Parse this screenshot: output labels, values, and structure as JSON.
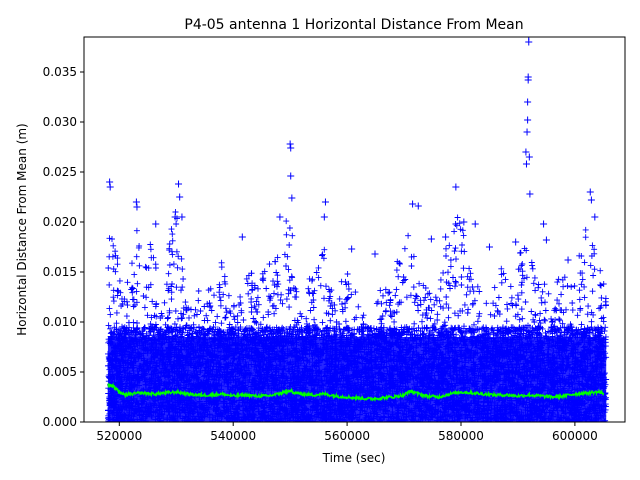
{
  "chart_data": {
    "type": "scatter",
    "title": "P4-05 antenna 1 Horizontal Distance From Mean",
    "xlabel": "Time (sec)",
    "ylabel": "Horizontal Distance From Mean (m)",
    "xlim": [
      513800,
      608800
    ],
    "ylim": [
      0,
      0.0385
    ],
    "x_ticks": [
      520000,
      540000,
      560000,
      580000,
      600000
    ],
    "x_tick_labels": [
      "520000",
      "540000",
      "560000",
      "580000",
      "600000"
    ],
    "y_ticks": [
      0.0,
      0.005,
      0.01,
      0.015,
      0.02,
      0.025,
      0.03,
      0.035
    ],
    "y_tick_labels": [
      "0.000",
      "0.005",
      "0.010",
      "0.015",
      "0.020",
      "0.025",
      "0.030",
      "0.035"
    ],
    "grid": false,
    "series": [
      {
        "marker": "+",
        "color": "#0000ff",
        "x_range": [
          518000,
          605500
        ],
        "envelope_x": [
          518000,
          519000,
          520000,
          521000,
          522000,
          523000,
          524000,
          525000,
          526000,
          527000,
          528000,
          529000,
          530000,
          531000,
          532000,
          533000,
          534000,
          535000,
          536000,
          537000,
          538000,
          539000,
          540000,
          541000,
          542000,
          543000,
          544000,
          545000,
          546000,
          547000,
          548000,
          549000,
          550000,
          551000,
          552000,
          553000,
          554000,
          555000,
          556000,
          557000,
          558000,
          559000,
          560000,
          561000,
          562000,
          563000,
          564000,
          565000,
          566000,
          567000,
          568000,
          569000,
          570000,
          571000,
          572000,
          573000,
          574000,
          575000,
          576000,
          577000,
          578000,
          579000,
          580000,
          581000,
          582000,
          583000,
          584000,
          585000,
          586000,
          587000,
          588000,
          589000,
          590000,
          591000,
          592000,
          593000,
          594000,
          595000,
          596000,
          597000,
          598000,
          599000,
          600000,
          601000,
          602000,
          603000,
          604000,
          605000
        ],
        "envelope_y": [
          0.0235,
          0.0185,
          0.0155,
          0.0135,
          0.0165,
          0.0205,
          0.0145,
          0.0175,
          0.0185,
          0.0115,
          0.0125,
          0.0195,
          0.0215,
          0.0165,
          0.0125,
          0.0115,
          0.0135,
          0.0155,
          0.0145,
          0.0125,
          0.0165,
          0.0135,
          0.0115,
          0.0125,
          0.0145,
          0.0155,
          0.0135,
          0.0145,
          0.0165,
          0.0155,
          0.0175,
          0.0195,
          0.0225,
          0.0145,
          0.0125,
          0.0135,
          0.0155,
          0.0165,
          0.0185,
          0.0145,
          0.0125,
          0.0145,
          0.0155,
          0.0135,
          0.0125,
          0.0115,
          0.0105,
          0.0125,
          0.0135,
          0.0145,
          0.0125,
          0.0175,
          0.0195,
          0.0185,
          0.0165,
          0.0145,
          0.0135,
          0.0125,
          0.0155,
          0.0175,
          0.0195,
          0.0215,
          0.0205,
          0.0165,
          0.0145,
          0.0135,
          0.0125,
          0.0135,
          0.0145,
          0.0155,
          0.0145,
          0.0135,
          0.0155,
          0.0195,
          0.0175,
          0.0145,
          0.0155,
          0.0135,
          0.0125,
          0.0145,
          0.0155,
          0.0135,
          0.0145,
          0.0175,
          0.0195,
          0.0185,
          0.0165,
          0.0145
        ],
        "outliers": [
          [
            518300,
            0.024
          ],
          [
            518400,
            0.0235
          ],
          [
            523000,
            0.022
          ],
          [
            523100,
            0.0215
          ],
          [
            526400,
            0.0198
          ],
          [
            529800,
            0.0205
          ],
          [
            530400,
            0.0238
          ],
          [
            530600,
            0.0225
          ],
          [
            531000,
            0.0205
          ],
          [
            541600,
            0.0185
          ],
          [
            548200,
            0.0205
          ],
          [
            550000,
            0.0278
          ],
          [
            550100,
            0.0274
          ],
          [
            550100,
            0.0246
          ],
          [
            550300,
            0.0224
          ],
          [
            556000,
            0.0205
          ],
          [
            556200,
            0.022
          ],
          [
            560800,
            0.0173
          ],
          [
            564900,
            0.0168
          ],
          [
            571500,
            0.0218
          ],
          [
            572500,
            0.0216
          ],
          [
            574800,
            0.0183
          ],
          [
            577300,
            0.0185
          ],
          [
            579100,
            0.0235
          ],
          [
            580500,
            0.02
          ],
          [
            582500,
            0.0198
          ],
          [
            585000,
            0.0175
          ],
          [
            589600,
            0.018
          ],
          [
            591400,
            0.027
          ],
          [
            591500,
            0.0258
          ],
          [
            591600,
            0.029
          ],
          [
            591700,
            0.0302
          ],
          [
            591700,
            0.032
          ],
          [
            591800,
            0.0345
          ],
          [
            591800,
            0.0342
          ],
          [
            591900,
            0.038
          ],
          [
            591900,
            0.0385
          ],
          [
            592000,
            0.0265
          ],
          [
            592100,
            0.0228
          ],
          [
            594500,
            0.0198
          ],
          [
            595000,
            0.0182
          ],
          [
            598800,
            0.0162
          ],
          [
            602700,
            0.023
          ],
          [
            602900,
            0.0222
          ],
          [
            603500,
            0.0205
          ]
        ]
      },
      {
        "line": true,
        "color": "#00ff00",
        "x": [
          518000,
          519000,
          520000,
          521000,
          522000,
          524000,
          526000,
          528000,
          530000,
          532000,
          534000,
          536000,
          538000,
          540000,
          542000,
          544000,
          546000,
          548000,
          549000,
          550000,
          551000,
          552000,
          554000,
          556000,
          558000,
          560000,
          562000,
          564000,
          566000,
          568000,
          570000,
          571000,
          572000,
          574000,
          576000,
          578000,
          580000,
          582000,
          584000,
          586000,
          588000,
          590000,
          592000,
          594000,
          596000,
          598000,
          600000,
          602000,
          604000,
          605000
        ],
        "y": [
          0.0037,
          0.0036,
          0.003,
          0.0027,
          0.0028,
          0.0029,
          0.0028,
          0.0029,
          0.003,
          0.0028,
          0.0027,
          0.0027,
          0.0028,
          0.0026,
          0.0027,
          0.0026,
          0.0026,
          0.0028,
          0.003,
          0.0031,
          0.0029,
          0.0028,
          0.0027,
          0.0028,
          0.0026,
          0.0025,
          0.0024,
          0.0023,
          0.0024,
          0.0025,
          0.0027,
          0.0031,
          0.0029,
          0.0026,
          0.0025,
          0.0028,
          0.003,
          0.0029,
          0.0028,
          0.0027,
          0.0027,
          0.0026,
          0.0027,
          0.0026,
          0.0025,
          0.0026,
          0.0028,
          0.0029,
          0.003,
          0.0029
        ]
      }
    ]
  }
}
